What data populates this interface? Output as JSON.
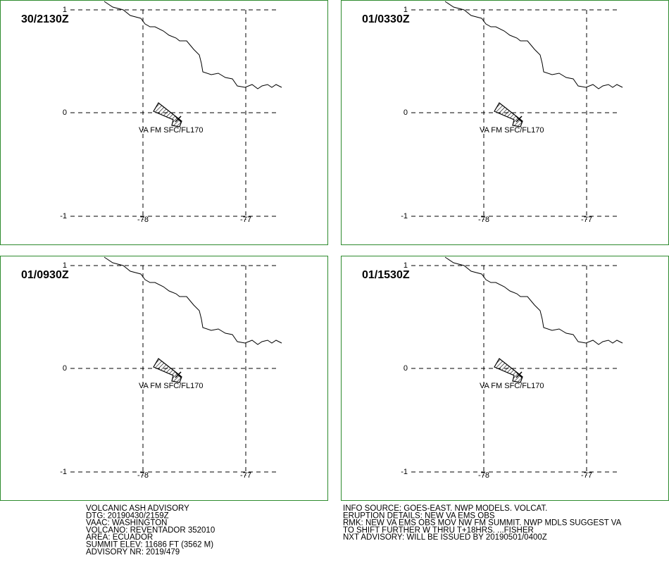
{
  "panels": [
    {
      "time": "30/2130Z",
      "label": "VA FM SFC/FL170",
      "lat_ticks": [
        "1",
        "0",
        "-1"
      ],
      "lon_ticks": [
        "-78",
        "-77"
      ]
    },
    {
      "time": "01/0330Z",
      "label": "VA FM SFC/FL170",
      "lat_ticks": [
        "1",
        "0",
        "-1"
      ],
      "lon_ticks": [
        "-78",
        "-77"
      ]
    },
    {
      "time": "01/0930Z",
      "label": "VA FM SFC/FL170",
      "lat_ticks": [
        "1",
        "0",
        "-1"
      ],
      "lon_ticks": [
        "-78",
        "-77"
      ]
    },
    {
      "time": "01/1530Z",
      "label": "VA FM SFC/FL170",
      "lat_ticks": [
        "1",
        "0",
        "-1"
      ],
      "lon_ticks": [
        "-78",
        "-77"
      ]
    }
  ],
  "advisory_left": [
    "VOLCANIC ASH ADVISORY",
    "DTG: 20190430/2159Z",
    "VAAC: WASHINGTON",
    "VOLCANO: REVENTADOR 352010",
    "AREA: ECUADOR",
    "SUMMIT ELEV: 11686 FT (3562 M)",
    "ADVISORY NR: 2019/479"
  ],
  "advisory_right": [
    "INFO SOURCE: GOES-EAST. NWP MODELS. VOLCAT.",
    "ERUPTION DETAILS: NEW VA EMS OBS",
    "RMK: NEW VA EMS OBS MOV NW FM SUMMIT. NWP MDLS SUGGEST VA",
    "TO SHIFT FURTHER W THRU T+18HRS. ...FISHER",
    "NXT ADVISORY: WILL BE ISSUED BY 20190501/0400Z"
  ]
}
